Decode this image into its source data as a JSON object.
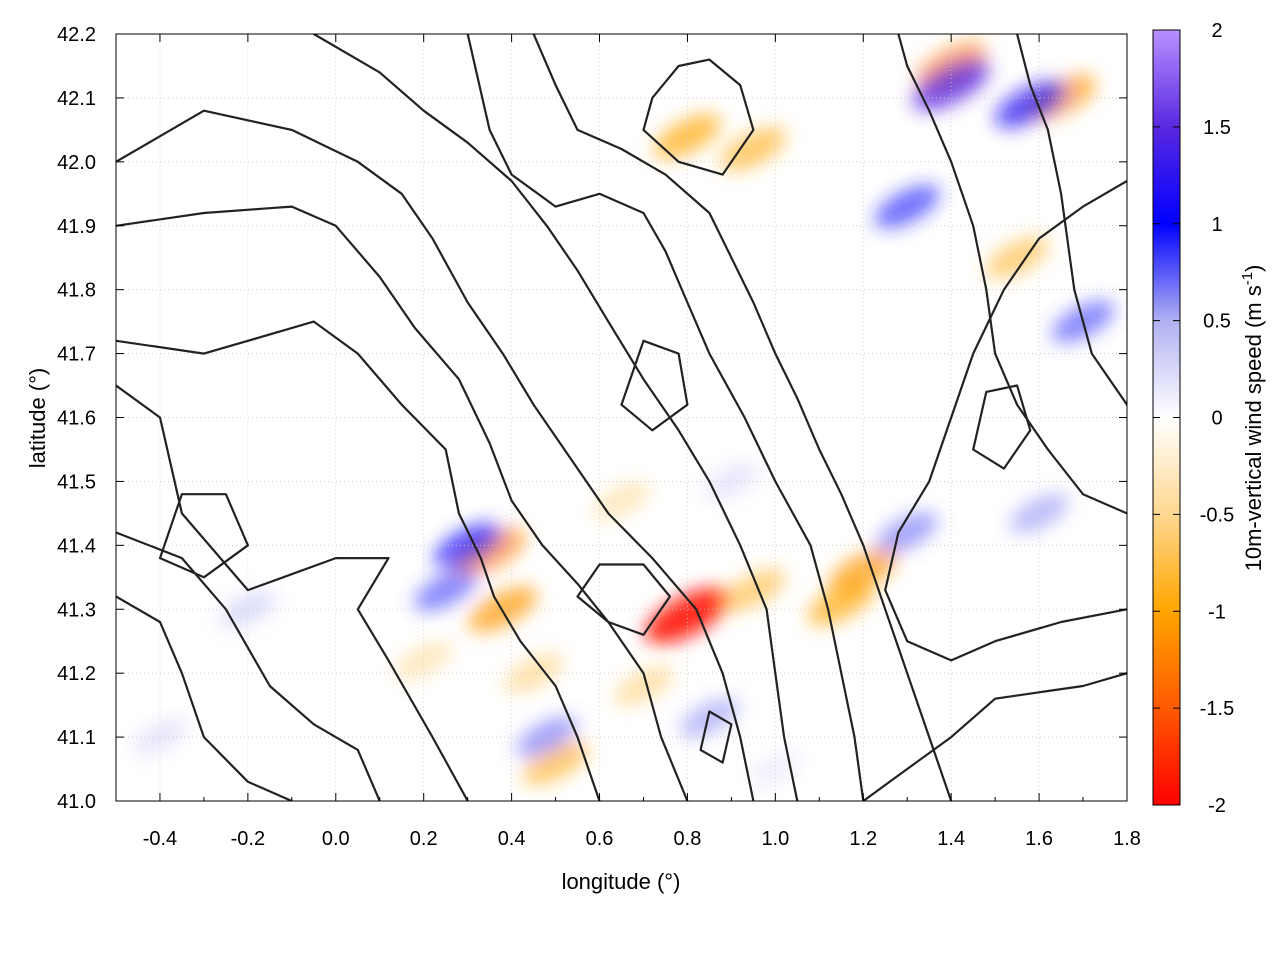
{
  "chart_data": {
    "type": "heatmap",
    "title": "",
    "xlabel": "longitude (°)",
    "ylabel": "latitude (°)",
    "colorbar_label": "10m-vertical wind speed (m s",
    "colorbar_label_sup": "-1",
    "colorbar_label_end": ")",
    "xlim": [
      -0.5,
      1.8
    ],
    "ylim": [
      41.0,
      42.2
    ],
    "xticks": [
      -0.4,
      -0.2,
      0.0,
      0.2,
      0.4,
      0.6,
      0.8,
      1.0,
      1.2,
      1.4,
      1.6,
      1.8
    ],
    "xtick_labels": [
      "-0.4",
      "-0.2",
      "0.0",
      "0.2",
      "0.4",
      "0.6",
      "0.8",
      "1.0",
      "1.2",
      "1.4",
      "1.6",
      "1.8"
    ],
    "yticks": [
      41.0,
      41.1,
      41.2,
      41.3,
      41.4,
      41.5,
      41.6,
      41.7,
      41.8,
      41.9,
      42.0,
      42.1,
      42.2
    ],
    "ytick_labels": [
      "41.0",
      "41.1",
      "41.2",
      "41.3",
      "41.4",
      "41.5",
      "41.6",
      "41.7",
      "41.8",
      "41.9",
      "42.0",
      "42.1",
      "42.2"
    ],
    "clim": [
      -2,
      2
    ],
    "cticks": [
      -2,
      -1.5,
      -1,
      -0.5,
      0,
      0.5,
      1,
      1.5,
      2
    ],
    "ctick_labels": [
      "-2",
      "-1.5",
      "-1",
      "-0.5",
      "0",
      "0.5",
      "1",
      "1.5",
      "2"
    ],
    "grid": true,
    "colormap": [
      {
        "v": -2.0,
        "color": "#ff0000"
      },
      {
        "v": -1.5,
        "color": "#ff5a00"
      },
      {
        "v": -1.0,
        "color": "#ffa500"
      },
      {
        "v": -0.5,
        "color": "#ffd890"
      },
      {
        "v": 0.0,
        "color": "#ffffff"
      },
      {
        "v": 0.5,
        "color": "#b0b0f2"
      },
      {
        "v": 1.0,
        "color": "#0000ff"
      },
      {
        "v": 1.5,
        "color": "#5a28e0"
      },
      {
        "v": 2.0,
        "color": "#b890ff"
      }
    ],
    "features": [
      {
        "lon": 0.8,
        "lat": 41.29,
        "value": -1.9
      },
      {
        "lon": 0.35,
        "lat": 41.39,
        "value": -1.2
      },
      {
        "lon": 0.38,
        "lat": 41.3,
        "value": -1.1
      },
      {
        "lon": 0.8,
        "lat": 42.04,
        "value": -1.0
      },
      {
        "lon": 0.95,
        "lat": 42.02,
        "value": -0.9
      },
      {
        "lon": 1.2,
        "lat": 41.36,
        "value": -1.1
      },
      {
        "lon": 1.15,
        "lat": 41.31,
        "value": -1.0
      },
      {
        "lon": 1.4,
        "lat": 42.15,
        "value": -1.2
      },
      {
        "lon": 1.65,
        "lat": 42.1,
        "value": -1.1
      },
      {
        "lon": 1.55,
        "lat": 41.85,
        "value": -0.8
      },
      {
        "lon": 0.5,
        "lat": 41.06,
        "value": -0.9
      },
      {
        "lon": 0.2,
        "lat": 41.22,
        "value": -0.5
      },
      {
        "lon": 0.45,
        "lat": 41.2,
        "value": -0.6
      },
      {
        "lon": 0.7,
        "lat": 41.18,
        "value": -0.6
      },
      {
        "lon": 0.95,
        "lat": 41.33,
        "value": -0.8
      },
      {
        "lon": 0.65,
        "lat": 41.47,
        "value": -0.5
      },
      {
        "lon": 0.3,
        "lat": 41.4,
        "value": 1.0
      },
      {
        "lon": 0.25,
        "lat": 41.33,
        "value": 0.8
      },
      {
        "lon": 1.4,
        "lat": 42.12,
        "value": 1.5
      },
      {
        "lon": 1.58,
        "lat": 42.09,
        "value": 1.2
      },
      {
        "lon": 1.3,
        "lat": 41.93,
        "value": 0.9
      },
      {
        "lon": 1.7,
        "lat": 41.75,
        "value": 0.8
      },
      {
        "lon": 1.6,
        "lat": 41.45,
        "value": 0.6
      },
      {
        "lon": 1.3,
        "lat": 41.42,
        "value": 0.7
      },
      {
        "lon": 0.85,
        "lat": 41.13,
        "value": 0.6
      },
      {
        "lon": 0.48,
        "lat": 41.1,
        "value": 0.7
      },
      {
        "lon": -0.2,
        "lat": 41.3,
        "value": 0.4
      },
      {
        "lon": -0.4,
        "lat": 41.1,
        "value": 0.3
      },
      {
        "lon": 0.9,
        "lat": 41.5,
        "value": 0.3
      },
      {
        "lon": 1.0,
        "lat": 41.05,
        "value": 0.2
      }
    ],
    "contours": [
      [
        [
          -0.1,
          41.0
        ],
        [
          -0.2,
          41.03
        ],
        [
          -0.3,
          41.1
        ],
        [
          -0.35,
          41.2
        ],
        [
          -0.4,
          41.28
        ],
        [
          -0.5,
          41.32
        ]
      ],
      [
        [
          0.1,
          41.0
        ],
        [
          0.05,
          41.08
        ],
        [
          -0.05,
          41.12
        ],
        [
          -0.15,
          41.18
        ],
        [
          -0.25,
          41.3
        ],
        [
          -0.35,
          41.38
        ],
        [
          -0.5,
          41.42
        ]
      ],
      [
        [
          0.3,
          41.0
        ],
        [
          0.22,
          41.1
        ],
        [
          0.12,
          41.22
        ],
        [
          0.05,
          41.3
        ],
        [
          0.12,
          41.38
        ],
        [
          0.0,
          41.38
        ],
        [
          -0.2,
          41.33
        ],
        [
          -0.35,
          41.45
        ],
        [
          -0.4,
          41.6
        ],
        [
          -0.5,
          41.65
        ]
      ],
      [
        [
          0.6,
          41.0
        ],
        [
          0.55,
          41.1
        ],
        [
          0.5,
          41.18
        ],
        [
          0.42,
          41.25
        ],
        [
          0.36,
          41.32
        ],
        [
          0.33,
          41.38
        ],
        [
          0.28,
          41.45
        ],
        [
          0.25,
          41.55
        ],
        [
          0.15,
          41.62
        ],
        [
          0.05,
          41.7
        ],
        [
          -0.05,
          41.75
        ],
        [
          -0.2,
          41.72
        ],
        [
          -0.3,
          41.7
        ],
        [
          -0.5,
          41.72
        ]
      ],
      [
        [
          0.8,
          41.0
        ],
        [
          0.74,
          41.1
        ],
        [
          0.7,
          41.2
        ],
        [
          0.62,
          41.28
        ],
        [
          0.55,
          41.34
        ],
        [
          0.47,
          41.4
        ],
        [
          0.4,
          41.47
        ],
        [
          0.35,
          41.56
        ],
        [
          0.28,
          41.66
        ],
        [
          0.18,
          41.74
        ],
        [
          0.1,
          41.82
        ],
        [
          0.0,
          41.9
        ],
        [
          -0.1,
          41.93
        ],
        [
          -0.3,
          41.92
        ],
        [
          -0.5,
          41.9
        ]
      ],
      [
        [
          0.95,
          41.0
        ],
        [
          0.92,
          41.1
        ],
        [
          0.88,
          41.2
        ],
        [
          0.82,
          41.3
        ],
        [
          0.72,
          41.38
        ],
        [
          0.62,
          41.45
        ],
        [
          0.52,
          41.55
        ],
        [
          0.45,
          41.62
        ],
        [
          0.38,
          41.7
        ],
        [
          0.3,
          41.78
        ],
        [
          0.22,
          41.88
        ],
        [
          0.15,
          41.95
        ],
        [
          0.05,
          42.0
        ],
        [
          -0.1,
          42.05
        ],
        [
          -0.3,
          42.08
        ],
        [
          -0.5,
          42.0
        ]
      ],
      [
        [
          1.05,
          41.0
        ],
        [
          1.02,
          41.1
        ],
        [
          1.0,
          41.2
        ],
        [
          0.98,
          41.3
        ],
        [
          0.92,
          41.4
        ],
        [
          0.85,
          41.5
        ],
        [
          0.78,
          41.58
        ],
        [
          0.7,
          41.66
        ],
        [
          0.62,
          41.75
        ],
        [
          0.55,
          41.83
        ],
        [
          0.48,
          41.9
        ],
        [
          0.4,
          41.97
        ],
        [
          0.3,
          42.03
        ],
        [
          0.2,
          42.08
        ],
        [
          0.1,
          42.14
        ],
        [
          -0.05,
          42.2
        ]
      ],
      [
        [
          1.2,
          41.0
        ],
        [
          1.18,
          41.1
        ],
        [
          1.15,
          41.2
        ],
        [
          1.12,
          41.3
        ],
        [
          1.08,
          41.4
        ],
        [
          1.0,
          41.5
        ],
        [
          0.93,
          41.6
        ],
        [
          0.85,
          41.7
        ],
        [
          0.8,
          41.78
        ],
        [
          0.75,
          41.86
        ],
        [
          0.7,
          41.92
        ],
        [
          0.6,
          41.95
        ],
        [
          0.5,
          41.93
        ],
        [
          0.4,
          41.98
        ],
        [
          0.35,
          42.05
        ],
        [
          0.3,
          42.2
        ]
      ],
      [
        [
          1.4,
          41.0
        ],
        [
          1.35,
          41.1
        ],
        [
          1.3,
          41.2
        ],
        [
          1.25,
          41.3
        ],
        [
          1.2,
          41.4
        ],
        [
          1.15,
          41.48
        ],
        [
          1.1,
          41.55
        ],
        [
          1.05,
          41.63
        ],
        [
          1.0,
          41.7
        ],
        [
          0.95,
          41.78
        ],
        [
          0.9,
          41.85
        ],
        [
          0.85,
          41.92
        ],
        [
          0.75,
          41.98
        ],
        [
          0.65,
          42.02
        ],
        [
          0.55,
          42.05
        ],
        [
          0.5,
          42.12
        ],
        [
          0.45,
          42.2
        ]
      ],
      [
        [
          1.8,
          41.2
        ],
        [
          1.7,
          41.18
        ],
        [
          1.6,
          41.17
        ],
        [
          1.5,
          41.16
        ],
        [
          1.4,
          41.1
        ],
        [
          1.3,
          41.05
        ],
        [
          1.2,
          41.0
        ]
      ],
      [
        [
          1.8,
          41.3
        ],
        [
          1.65,
          41.28
        ],
        [
          1.5,
          41.25
        ],
        [
          1.4,
          41.22
        ],
        [
          1.3,
          41.25
        ],
        [
          1.25,
          41.33
        ],
        [
          1.28,
          41.42
        ],
        [
          1.35,
          41.5
        ],
        [
          1.4,
          41.6
        ],
        [
          1.45,
          41.7
        ],
        [
          1.52,
          41.8
        ],
        [
          1.6,
          41.88
        ],
        [
          1.7,
          41.93
        ],
        [
          1.8,
          41.97
        ]
      ],
      [
        [
          1.8,
          41.45
        ],
        [
          1.7,
          41.48
        ],
        [
          1.62,
          41.55
        ],
        [
          1.55,
          41.62
        ],
        [
          1.5,
          41.7
        ],
        [
          1.48,
          41.8
        ],
        [
          1.45,
          41.9
        ],
        [
          1.4,
          42.0
        ],
        [
          1.35,
          42.08
        ],
        [
          1.3,
          42.15
        ],
        [
          1.28,
          42.2
        ]
      ],
      [
        [
          1.8,
          41.62
        ],
        [
          1.72,
          41.7
        ],
        [
          1.68,
          41.8
        ],
        [
          1.65,
          41.95
        ],
        [
          1.62,
          42.05
        ],
        [
          1.58,
          42.12
        ],
        [
          1.55,
          42.2
        ]
      ],
      [
        [
          0.7,
          42.05
        ],
        [
          0.78,
          42.0
        ],
        [
          0.88,
          41.98
        ],
        [
          0.95,
          42.05
        ],
        [
          0.92,
          42.12
        ],
        [
          0.85,
          42.16
        ],
        [
          0.78,
          42.15
        ],
        [
          0.72,
          42.1
        ],
        [
          0.7,
          42.05
        ]
      ],
      [
        [
          0.55,
          41.32
        ],
        [
          0.62,
          41.28
        ],
        [
          0.7,
          41.26
        ],
        [
          0.76,
          41.32
        ],
        [
          0.7,
          41.37
        ],
        [
          0.6,
          41.37
        ],
        [
          0.55,
          41.32
        ]
      ],
      [
        [
          -0.4,
          41.38
        ],
        [
          -0.3,
          41.35
        ],
        [
          -0.2,
          41.4
        ],
        [
          -0.25,
          41.48
        ],
        [
          -0.35,
          41.48
        ],
        [
          -0.4,
          41.38
        ]
      ],
      [
        [
          0.65,
          41.62
        ],
        [
          0.72,
          41.58
        ],
        [
          0.8,
          41.62
        ],
        [
          0.78,
          41.7
        ],
        [
          0.7,
          41.72
        ],
        [
          0.65,
          41.62
        ]
      ],
      [
        [
          1.45,
          41.55
        ],
        [
          1.52,
          41.52
        ],
        [
          1.58,
          41.58
        ],
        [
          1.55,
          41.65
        ],
        [
          1.48,
          41.64
        ],
        [
          1.45,
          41.55
        ]
      ],
      [
        [
          0.83,
          41.08
        ],
        [
          0.88,
          41.06
        ],
        [
          0.9,
          41.12
        ],
        [
          0.85,
          41.14
        ],
        [
          0.83,
          41.08
        ]
      ]
    ]
  }
}
